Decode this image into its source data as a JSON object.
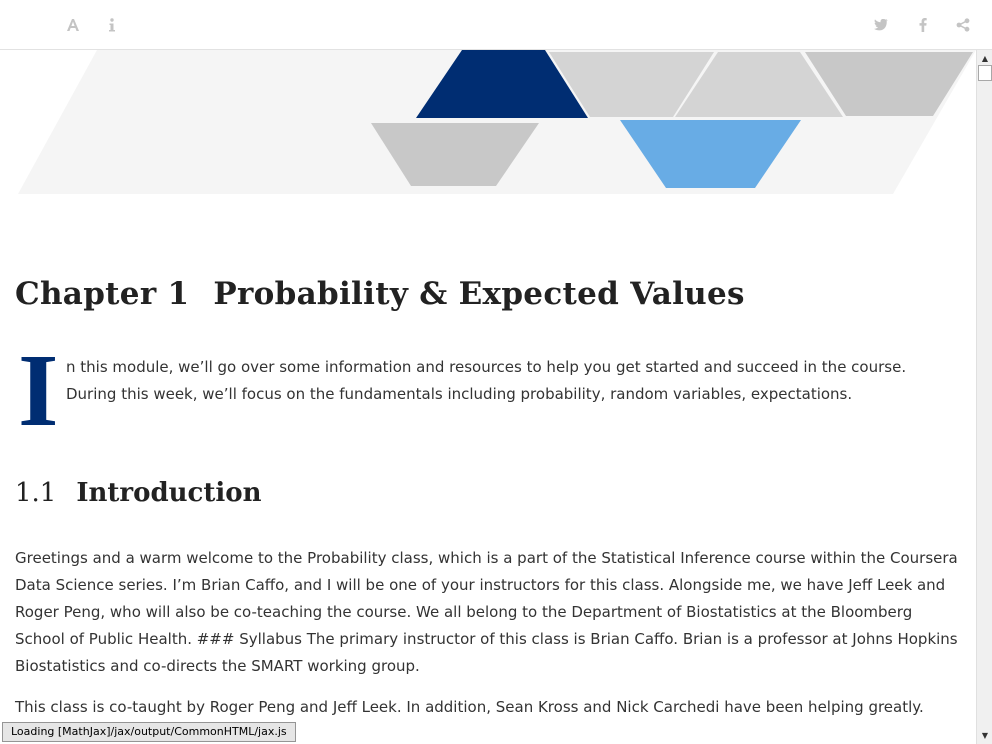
{
  "toolbar": {
    "font_icon": "font-icon",
    "info_icon": "info-icon",
    "twitter_icon": "twitter-icon",
    "facebook_icon": "facebook-icon",
    "share_icon": "share-icon"
  },
  "colors": {
    "brand_navy": "#002d72",
    "light_blue": "#68ace5",
    "gray_block": "#cccccc",
    "banner_bg": "#f5f5f5"
  },
  "chapter": {
    "number": "Chapter 1",
    "title": "Probability & Expected Values"
  },
  "intro": {
    "dropcap": "I",
    "text": "n this module, we’ll go over some information and resources to help you get started and succeed in the course. During this week, we’ll focus on the fundamentals including probability, random variables, expectations."
  },
  "section": {
    "number": "1.1",
    "title": "Introduction"
  },
  "paragraphs": [
    "Greetings and a warm welcome to the Probability class, which is a part of the Statistical Inference course within the Coursera Data Science series. I’m Brian Caffo, and I will be one of your instructors for this class. Alongside me, we have Jeff Leek and Roger Peng, who will also be co-teaching the course. We all belong to the Department of Biostatistics at the Bloomberg School of Public Health. ### Syllabus The primary instructor of this class is Brian Caffo. Brian is a professor at Johns Hopkins Biostatistics and co-directs the SMART working group.",
    "This class is co-taught by Roger Peng and Jeff Leek. In addition, Sean Kross and Nick Carchedi have been helping greatly."
  ],
  "status": {
    "text": "Loading [MathJax]/jax/output/CommonHTML/jax.js"
  }
}
